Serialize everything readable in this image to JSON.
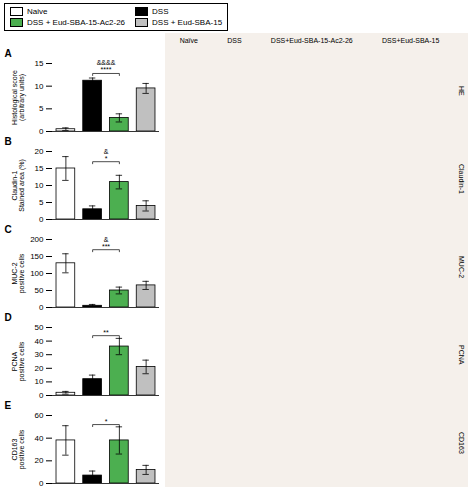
{
  "chart_data": [
    {
      "type": "bar",
      "title": "A",
      "ylabel": "Histological score\n(arbitrary units)",
      "categories": [
        "Naive",
        "DSS",
        "DSS + Eud-SBA-15-Ac2-26",
        "DSS + Eud-SBA-15"
      ],
      "values": [
        0.5,
        11.2,
        3.0,
        9.5
      ],
      "errors": [
        0.3,
        0.6,
        0.9,
        1.1
      ],
      "colors": [
        "white",
        "black",
        "#4CAF50",
        "#C0C0C0"
      ],
      "ylim": [
        0,
        15
      ],
      "yticks": [
        0,
        5,
        10,
        15
      ],
      "tick_labels": "y",
      "legend": "upper left",
      "annotations": [
        {
          "text": "&&&&\n****",
          "x": [
            "DSS",
            "DSS + Eud-SBA-15-Ac2-26"
          ],
          "y": 12.8
        }
      ]
    },
    {
      "type": "bar",
      "title": "B",
      "ylabel": "Claudin-1\nStained area (%)",
      "categories": [
        "Naive",
        "DSS",
        "DSS + Eud-SBA-15-Ac2-26",
        "DSS + Eud-SBA-15"
      ],
      "values": [
        15.0,
        3.0,
        11.0,
        4.0
      ],
      "errors": [
        3.5,
        1.0,
        2.0,
        1.5
      ],
      "colors": [
        "white",
        "black",
        "#4CAF50",
        "#C0C0C0"
      ],
      "ylim": [
        0,
        20
      ],
      "yticks": [
        0,
        5,
        10,
        15,
        20
      ],
      "tick_labels": "y",
      "annotations": [
        {
          "text": "&\n*",
          "x": [
            "DSS",
            "DSS + Eud-SBA-15-Ac2-26"
          ],
          "y": 17.0
        }
      ]
    },
    {
      "type": "bar",
      "title": "C",
      "ylabel": "MUC-2\npositive cells",
      "categories": [
        "Naive",
        "DSS",
        "DSS + Eud-SBA-15-Ac2-26",
        "DSS + Eud-SBA-15"
      ],
      "values": [
        130,
        5,
        50,
        65
      ],
      "errors": [
        28,
        4,
        10,
        12
      ],
      "colors": [
        "white",
        "black",
        "#4CAF50",
        "#C0C0C0"
      ],
      "ylim": [
        0,
        200
      ],
      "yticks": [
        0,
        50,
        100,
        150,
        200
      ],
      "tick_labels": "y",
      "annotations": [
        {
          "text": "&\n***",
          "x": [
            "DSS",
            "DSS + Eud-SBA-15-Ac2-26"
          ],
          "y": 170
        }
      ]
    },
    {
      "type": "bar",
      "title": "D",
      "ylabel": "PCNA\npositive cells",
      "categories": [
        "Naive",
        "DSS",
        "DSS + Eud-SBA-15-Ac2-26",
        "DSS + Eud-SBA-15"
      ],
      "values": [
        2,
        12,
        36,
        21
      ],
      "errors": [
        1.0,
        3,
        6,
        5
      ],
      "colors": [
        "white",
        "black",
        "#4CAF50",
        "#C0C0C0"
      ],
      "ylim": [
        0,
        50
      ],
      "yticks": [
        0,
        10,
        20,
        30,
        40,
        50
      ],
      "tick_labels": "y",
      "annotations": [
        {
          "text": "**",
          "x": [
            "DSS",
            "DSS + Eud-SBA-15-Ac2-26"
          ],
          "y": 44
        }
      ]
    },
    {
      "type": "bar",
      "title": "E",
      "ylabel": "CD163\npositive cells",
      "categories": [
        "Naive",
        "DSS",
        "DSS + Eud-SBA-15-Ac2-26",
        "DSS + Eud-SBA-15"
      ],
      "values": [
        38,
        7,
        38,
        12
      ],
      "errors": [
        13,
        4,
        12,
        4
      ],
      "colors": [
        "white",
        "black",
        "#4CAF50",
        "#C0C0C0"
      ],
      "ylim": [
        0,
        60
      ],
      "yticks": [
        0,
        20,
        40,
        60
      ],
      "tick_labels": "y",
      "annotations": [
        {
          "text": "*",
          "x": [
            "DSS",
            "DSS + Eud-SBA-15-Ac2-26"
          ],
          "y": 52
        }
      ]
    },
    {
      "type": "image",
      "color": "#F5F0EB",
      "categories": [
        "Naïve",
        "DSS",
        "DSS+Eud-SBA-15-Ac2-26",
        "DSS+Eud-SBA-15"
      ],
      "annotations": [
        "HE",
        "Claudin-1",
        "MUC-2",
        "PCNA",
        "CD163"
      ]
    }
  ]
}
